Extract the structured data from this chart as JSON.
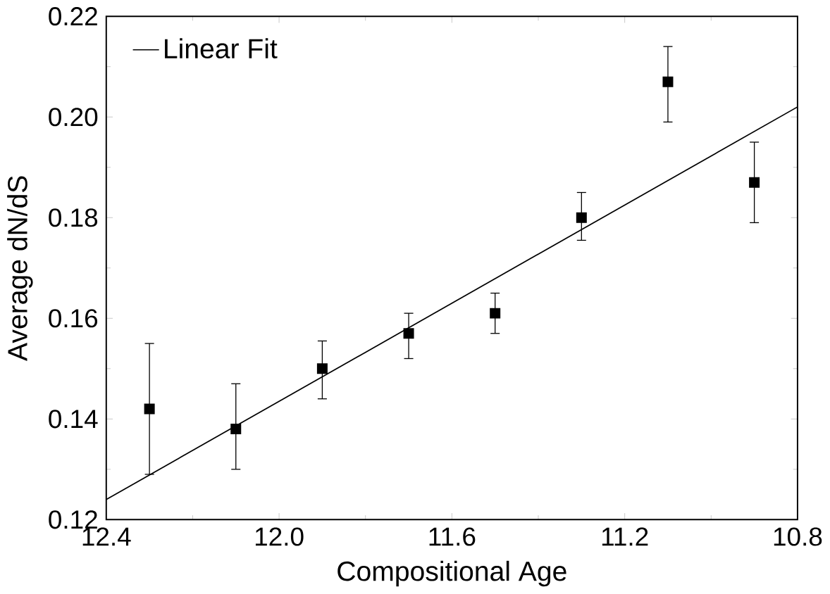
{
  "chart_data": {
    "type": "scatter",
    "xlabel": "Compositional Age",
    "ylabel": "Average dN/dS",
    "xlim": [
      12.4,
      10.8
    ],
    "xticks": [
      12.4,
      {
        "value": 12.0,
        "label": "12.0"
      },
      11.6,
      11.2,
      10.8
    ],
    "ylim": [
      0.12,
      0.22
    ],
    "yticks": [
      0.12,
      0.14,
      0.16,
      0.18,
      {
        "value": 0.2,
        "label": "0.20"
      },
      0.22
    ],
    "marker": "square",
    "legend": "top left",
    "series": [
      {
        "color": "#000000",
        "x": [
          12.3,
          12.1,
          11.9,
          11.7,
          11.5,
          11.3,
          11.1,
          10.9
        ],
        "values": [
          0.142,
          0.138,
          0.15,
          0.157,
          0.161,
          0.18,
          0.207,
          0.187
        ],
        "errors": [
          [
            0.129,
            0.155
          ],
          [
            0.13,
            0.147
          ],
          [
            0.144,
            0.1555
          ],
          [
            0.152,
            0.161
          ],
          [
            0.157,
            0.165
          ],
          [
            0.1755,
            0.185
          ],
          [
            0.199,
            0.214
          ],
          [
            0.179,
            0.195
          ]
        ]
      },
      {
        "type": "line",
        "name": "Linear Fit",
        "color": "#000000",
        "marker": "none",
        "x": [
          12.4,
          10.8
        ],
        "values": [
          0.124,
          0.202
        ]
      }
    ]
  }
}
